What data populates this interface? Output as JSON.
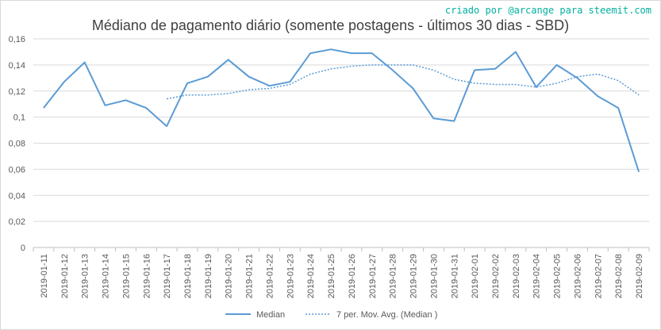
{
  "credit": "criado por @arcange para steemit.com",
  "chart_data": {
    "type": "line",
    "title": "Médiano de pagamento diário (somente postagens - últimos 30 dias - SBD)",
    "xlabel": "",
    "ylabel": "",
    "ylim": [
      0,
      0.16
    ],
    "yticks": [
      0,
      0.02,
      0.04,
      0.06,
      0.08,
      0.1,
      0.12,
      0.14,
      0.16
    ],
    "ytick_labels": [
      "0",
      "0,02",
      "0,04",
      "0,06",
      "0,08",
      "0,1",
      "0,12",
      "0,14",
      "0,16"
    ],
    "grid": "horizontal",
    "legend_position": "bottom",
    "categories": [
      "2019-01-11",
      "2019-01-12",
      "2019-01-13",
      "2019-01-14",
      "2019-01-15",
      "2019-01-16",
      "2019-01-17",
      "2019-01-18",
      "2019-01-19",
      "2019-01-20",
      "2019-01-21",
      "2019-01-22",
      "2019-01-23",
      "2019-01-24",
      "2019-01-25",
      "2019-01-26",
      "2019-01-27",
      "2019-01-28",
      "2019-01-29",
      "2019-01-30",
      "2019-01-31",
      "2019-02-01",
      "2019-02-02",
      "2019-02-03",
      "2019-02-04",
      "2019-02-05",
      "2019-02-06",
      "2019-02-07",
      "2019-02-08",
      "2019-02-09"
    ],
    "series": [
      {
        "name": "Median",
        "style": "solid",
        "color": "#5b9bd5",
        "values": [
          0.107,
          0.127,
          0.142,
          0.109,
          0.113,
          0.107,
          0.093,
          0.126,
          0.131,
          0.144,
          0.131,
          0.124,
          0.127,
          0.149,
          0.152,
          0.149,
          0.149,
          0.136,
          0.122,
          0.099,
          0.097,
          0.136,
          0.137,
          0.15,
          0.123,
          0.14,
          0.13,
          0.116,
          0.107,
          0.058
        ]
      },
      {
        "name": "7 per. Mov. Avg. (Median )",
        "style": "dotted",
        "color": "#5b9bd5",
        "values": [
          null,
          null,
          null,
          null,
          null,
          null,
          0.114,
          0.117,
          0.117,
          0.118,
          0.121,
          0.122,
          0.125,
          0.133,
          0.137,
          0.139,
          0.14,
          0.14,
          0.14,
          0.136,
          0.129,
          0.126,
          0.125,
          0.125,
          0.123,
          0.126,
          0.131,
          0.133,
          0.128,
          0.117
        ]
      }
    ]
  }
}
